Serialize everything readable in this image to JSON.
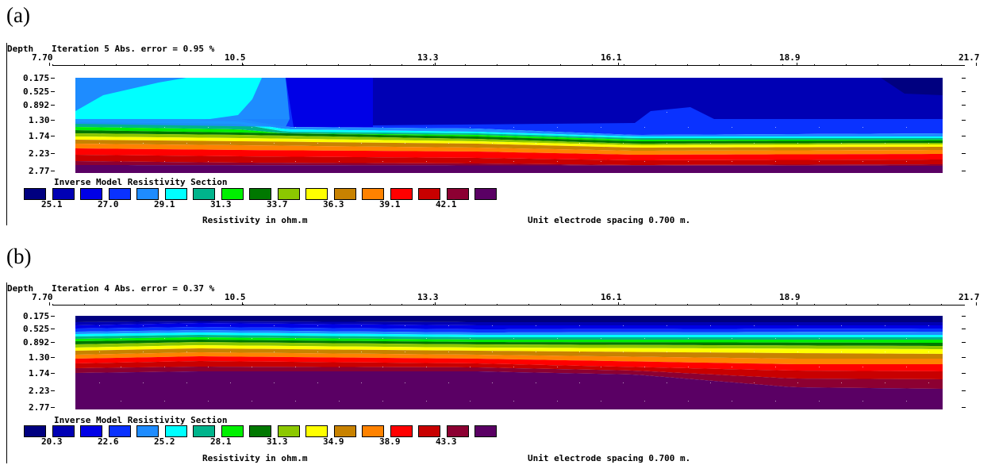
{
  "panels": [
    {
      "letter": "(a)",
      "depth_label": "Depth",
      "iteration_text": "Iteration 5 Abs. error = 0.95 %",
      "x_ticks": [
        "7.70",
        "10.5",
        "13.3",
        "16.1",
        "18.9",
        "21.7"
      ],
      "depth_ticks": [
        "0.175",
        "0.525",
        "0.892",
        "1.30",
        "1.74",
        "2.23",
        "2.77"
      ],
      "section_title": "Inverse Model Resistivity Section",
      "legend_values": [
        "25.1",
        "27.0",
        "29.1",
        "31.3",
        "33.7",
        "36.3",
        "39.1",
        "42.1"
      ],
      "resistivity_label": "Resistivity in ohm.m",
      "spacing_label": "Unit electrode spacing 0.700 m.",
      "chart_data": {
        "type": "heatmap",
        "x_range": [
          7.7,
          21.7
        ],
        "depth_range": [
          0.175,
          2.77
        ],
        "x_ticks": [
          7.7,
          10.5,
          13.3,
          16.1,
          18.9,
          21.7
        ],
        "depth_ticks": [
          0.175,
          0.525,
          0.892,
          1.3,
          1.74,
          2.23,
          2.77
        ],
        "color_scale_values": [
          25.1,
          27.0,
          29.1,
          31.3,
          33.7,
          36.3,
          39.1,
          42.1
        ],
        "description_layers_top_to_bottom": "low resistivity (blue, light blue near x=8-11) at shallow depth grading to high resistivity (red/purple) below ~1.5 m"
      }
    },
    {
      "letter": "(b)",
      "depth_label": "Depth",
      "iteration_text": "Iteration 4 Abs. error = 0.37 %",
      "x_ticks": [
        "7.70",
        "10.5",
        "13.3",
        "16.1",
        "18.9",
        "21.7"
      ],
      "depth_ticks": [
        "0.175",
        "0.525",
        "0.892",
        "1.30",
        "1.74",
        "2.23",
        "2.77"
      ],
      "section_title": "Inverse Model Resistivity Section",
      "legend_values": [
        "20.3",
        "22.6",
        "25.2",
        "28.1",
        "31.3",
        "34.9",
        "38.9",
        "43.3"
      ],
      "resistivity_label": "Resistivity in ohm.m",
      "spacing_label": "Unit electrode spacing 0.700 m.",
      "chart_data": {
        "type": "heatmap",
        "x_range": [
          7.7,
          21.7
        ],
        "depth_range": [
          0.175,
          2.77
        ],
        "x_ticks": [
          7.7,
          10.5,
          13.3,
          16.1,
          18.9,
          21.7
        ],
        "depth_ticks": [
          0.175,
          0.525,
          0.892,
          1.3,
          1.74,
          2.23,
          2.77
        ],
        "color_scale_values": [
          20.3,
          22.6,
          25.2,
          28.1,
          31.3,
          34.9,
          38.9,
          43.3
        ]
      }
    }
  ],
  "colors": [
    "#000080",
    "#0000b4",
    "#0000e6",
    "#0a32ff",
    "#1e8cff",
    "#00ffff",
    "#00b48c",
    "#00f000",
    "#007800",
    "#8cc800",
    "#ffff00",
    "#c88200",
    "#ff8200",
    "#ff0000",
    "#c80000",
    "#8c0032",
    "#5a0064"
  ]
}
